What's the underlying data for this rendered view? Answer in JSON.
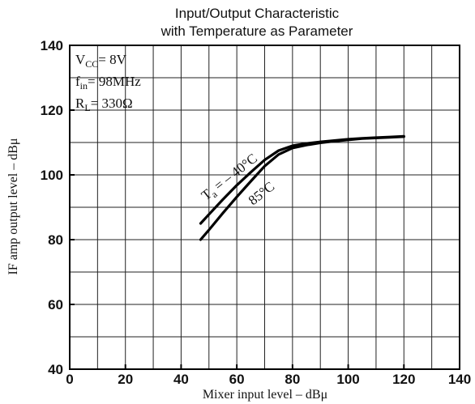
{
  "chart_data": {
    "type": "line",
    "title_lines": [
      "Input/Output Characteristic",
      "with Temperature as Parameter"
    ],
    "xlabel": "Mixer input level   –   dBμ",
    "ylabel": "IF amp output level   –   dBμ",
    "xlim": [
      0,
      140
    ],
    "ylim": [
      40,
      140
    ],
    "x_ticks": [
      "0",
      "20",
      "40",
      "60",
      "80",
      "100",
      "120",
      "140"
    ],
    "y_ticks": [
      "40",
      "60",
      "80",
      "100",
      "120",
      "140"
    ],
    "grid": true,
    "conditions": {
      "vcc": {
        "symbol": "V",
        "sub": "CC",
        "value": "= 8V"
      },
      "fin": {
        "symbol": "f",
        "sub": "in",
        "value": "= 98MHz"
      },
      "rl": {
        "symbol": "R",
        "sub": "L",
        "value": "= 330Ω"
      }
    },
    "series": [
      {
        "name": "Ta = –40°C",
        "label_parts": {
          "symbol": "T",
          "sub": "a",
          "value": " = – 40°C"
        },
        "x": [
          47,
          50,
          55,
          60,
          65,
          70,
          75,
          80,
          85,
          90,
          95,
          100,
          105,
          110,
          115,
          120
        ],
        "y": [
          85,
          87.8,
          92.4,
          96.8,
          100.8,
          104.6,
          107.5,
          109,
          109.7,
          110.2,
          110.6,
          111,
          111.3,
          111.5,
          111.7,
          111.9
        ]
      },
      {
        "name": "85°C",
        "label_parts": {
          "symbol": "",
          "sub": "",
          "value": "85°C"
        },
        "x": [
          47,
          50,
          55,
          60,
          65,
          70,
          75,
          80,
          85,
          90,
          95,
          100,
          105,
          110,
          115,
          120
        ],
        "y": [
          80,
          83,
          88.2,
          93.2,
          98,
          102.7,
          106.3,
          108.3,
          109.2,
          109.9,
          110.4,
          110.8,
          111.2,
          111.4,
          111.6,
          111.8
        ]
      }
    ]
  }
}
